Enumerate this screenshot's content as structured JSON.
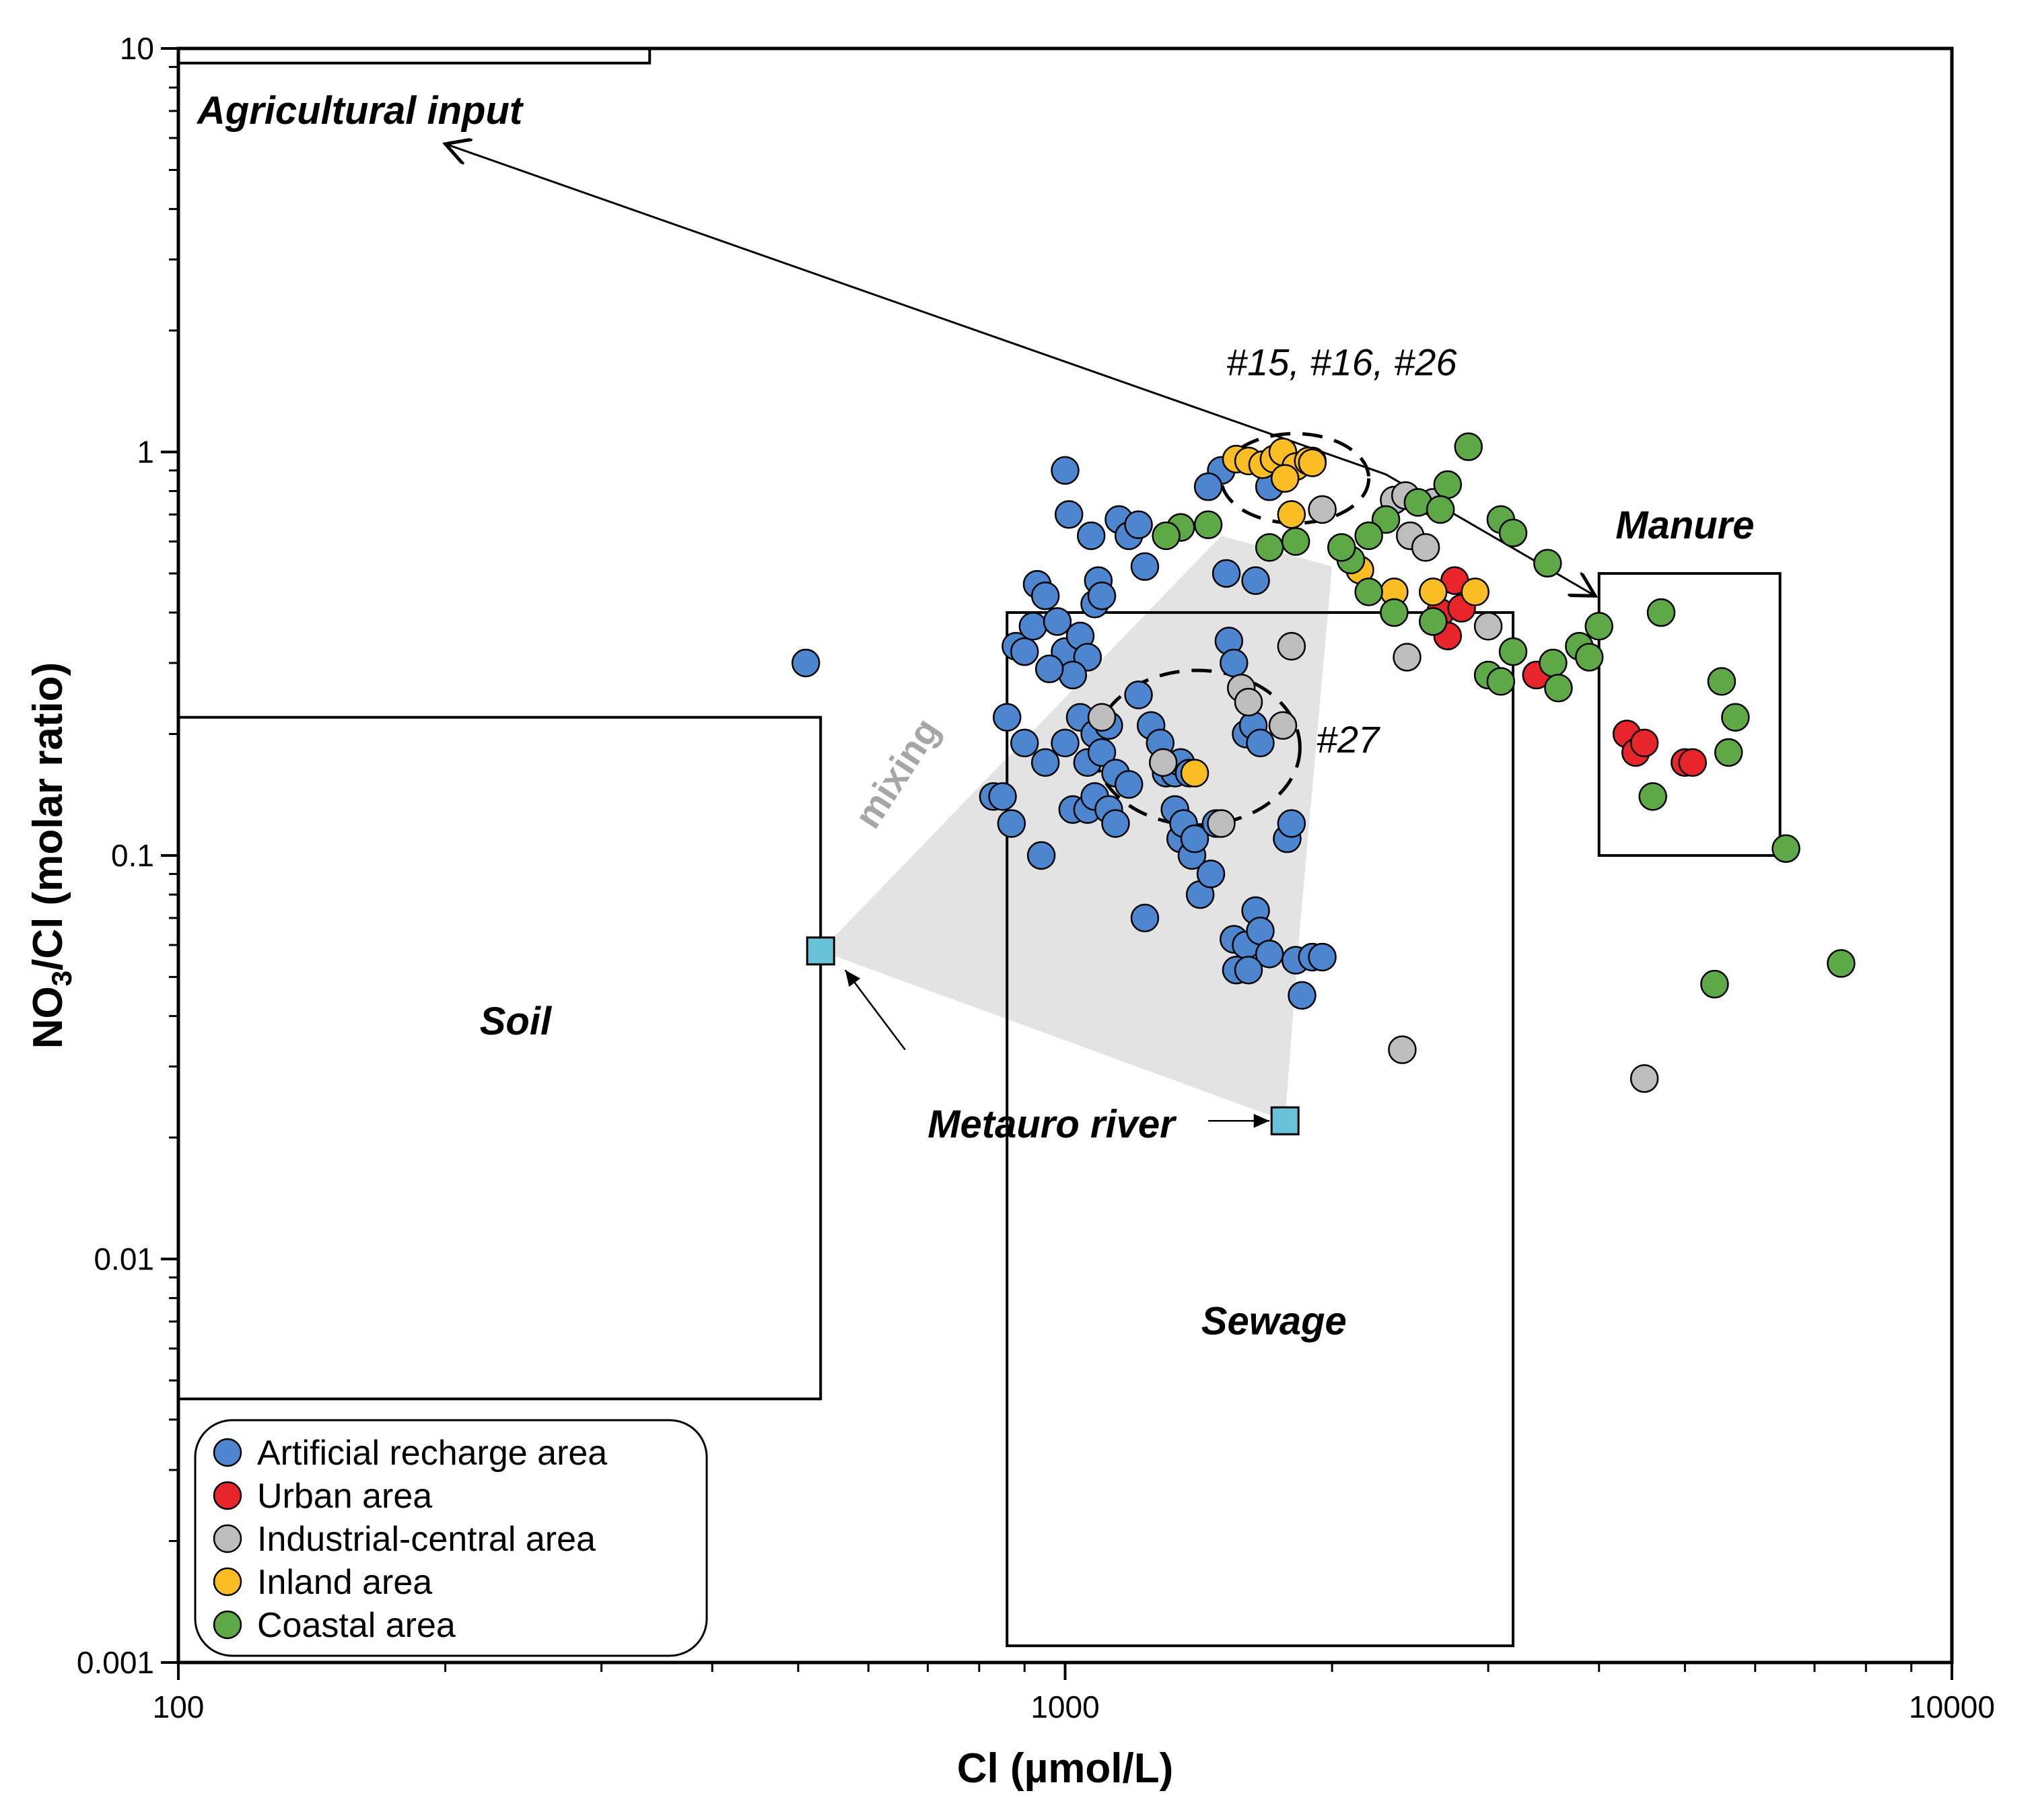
{
  "chart_data": {
    "type": "scatter",
    "xlabel": "Cl (µmol/L)",
    "ylabel_main": "NO",
    "ylabel_sub": "3",
    "ylabel_rest": "/Cl (molar ratio)",
    "xscale": "log",
    "yscale": "log",
    "xlim": [
      100,
      10000
    ],
    "ylim": [
      0.001,
      10
    ],
    "x_ticks": [
      {
        "value": 100,
        "label": "100"
      },
      {
        "value": 1000,
        "label": "1000"
      },
      {
        "value": 10000,
        "label": "10000"
      }
    ],
    "y_ticks": [
      {
        "value": 0.001,
        "label": "0.001"
      },
      {
        "value": 0.01,
        "label": "0.01"
      },
      {
        "value": 0.1,
        "label": "0.1"
      },
      {
        "value": 1,
        "label": "1"
      },
      {
        "value": 10,
        "label": "10"
      }
    ],
    "grid": false,
    "legend_position": "bottom-left",
    "series": [
      {
        "name": "Artificial recharge area",
        "color": "#4d86cf",
        "points": [
          [
            510,
            0.3
          ],
          [
            1000,
            0.9
          ],
          [
            1500,
            0.9
          ],
          [
            1450,
            0.82
          ],
          [
            1010,
            0.7
          ],
          [
            1070,
            0.62
          ],
          [
            1150,
            0.68
          ],
          [
            1180,
            0.62
          ],
          [
            1210,
            0.66
          ],
          [
            1230,
            0.52
          ],
          [
            1520,
            0.5
          ],
          [
            1640,
            0.48
          ],
          [
            1700,
            0.82
          ],
          [
            930,
            0.47
          ],
          [
            950,
            0.44
          ],
          [
            880,
            0.33
          ],
          [
            900,
            0.32
          ],
          [
            920,
            0.37
          ],
          [
            980,
            0.38
          ],
          [
            1000,
            0.32
          ],
          [
            1040,
            0.35
          ],
          [
            1060,
            0.31
          ],
          [
            1080,
            0.42
          ],
          [
            1090,
            0.48
          ],
          [
            1100,
            0.44
          ],
          [
            1020,
            0.28
          ],
          [
            960,
            0.29
          ],
          [
            860,
            0.22
          ],
          [
            900,
            0.19
          ],
          [
            950,
            0.17
          ],
          [
            1000,
            0.19
          ],
          [
            1040,
            0.22
          ],
          [
            1080,
            0.2
          ],
          [
            1120,
            0.21
          ],
          [
            1060,
            0.17
          ],
          [
            1100,
            0.18
          ],
          [
            1140,
            0.16
          ],
          [
            1180,
            0.15
          ],
          [
            830,
            0.14
          ],
          [
            850,
            0.14
          ],
          [
            870,
            0.12
          ],
          [
            940,
            0.1
          ],
          [
            1020,
            0.13
          ],
          [
            1060,
            0.13
          ],
          [
            1080,
            0.14
          ],
          [
            1120,
            0.13
          ],
          [
            1140,
            0.12
          ],
          [
            1210,
            0.25
          ],
          [
            1250,
            0.21
          ],
          [
            1280,
            0.19
          ],
          [
            1300,
            0.16
          ],
          [
            1330,
            0.16
          ],
          [
            1350,
            0.17
          ],
          [
            1380,
            0.16
          ],
          [
            1230,
            0.07
          ],
          [
            1330,
            0.13
          ],
          [
            1350,
            0.11
          ],
          [
            1360,
            0.12
          ],
          [
            1390,
            0.1
          ],
          [
            1400,
            0.11
          ],
          [
            1420,
            0.08
          ],
          [
            1460,
            0.09
          ],
          [
            1480,
            0.12
          ],
          [
            1530,
            0.34
          ],
          [
            1550,
            0.3
          ],
          [
            1600,
            0.2
          ],
          [
            1630,
            0.21
          ],
          [
            1660,
            0.19
          ],
          [
            1550,
            0.062
          ],
          [
            1600,
            0.06
          ],
          [
            1640,
            0.073
          ],
          [
            1660,
            0.065
          ],
          [
            1700,
            0.057
          ],
          [
            1780,
            0.11
          ],
          [
            1800,
            0.12
          ],
          [
            1820,
            0.055
          ],
          [
            1850,
            0.045
          ],
          [
            1900,
            0.056
          ],
          [
            1950,
            0.056
          ],
          [
            1560,
            0.052
          ],
          [
            1610,
            0.052
          ]
        ]
      },
      {
        "name": "Urban area",
        "color": "#e8252a",
        "points": [
          [
            2650,
            0.4
          ],
          [
            2750,
            0.48
          ],
          [
            2800,
            0.41
          ],
          [
            2700,
            0.35
          ],
          [
            3400,
            0.28
          ],
          [
            4300,
            0.2
          ],
          [
            4400,
            0.18
          ],
          [
            4500,
            0.19
          ],
          [
            5000,
            0.17
          ],
          [
            5100,
            0.17
          ]
        ]
      },
      {
        "name": "Industrial-central area",
        "color": "#bdbdbd",
        "points": [
          [
            1900,
            0.95
          ],
          [
            1950,
            0.72
          ],
          [
            2350,
            0.76
          ],
          [
            2420,
            0.78
          ],
          [
            2600,
            0.75
          ],
          [
            2450,
            0.62
          ],
          [
            2550,
            0.58
          ],
          [
            2430,
            0.31
          ],
          [
            3000,
            0.37
          ],
          [
            1800,
            0.33
          ],
          [
            1580,
            0.26
          ],
          [
            1610,
            0.24
          ],
          [
            1760,
            0.21
          ],
          [
            1100,
            0.22
          ],
          [
            1290,
            0.17
          ],
          [
            1500,
            0.12
          ],
          [
            2400,
            0.033
          ],
          [
            4500,
            0.028
          ]
        ]
      },
      {
        "name": "Inland area",
        "color": "#fbbd24",
        "points": [
          [
            1560,
            0.96
          ],
          [
            1610,
            0.95
          ],
          [
            1670,
            0.93
          ],
          [
            1720,
            0.96
          ],
          [
            1760,
            1.0
          ],
          [
            1820,
            0.92
          ],
          [
            1880,
            0.95
          ],
          [
            1900,
            0.94
          ],
          [
            1770,
            0.86
          ],
          [
            1800,
            0.7
          ],
          [
            2150,
            0.51
          ],
          [
            2350,
            0.45
          ],
          [
            2600,
            0.45
          ],
          [
            2900,
            0.45
          ],
          [
            1400,
            0.16
          ]
        ]
      },
      {
        "name": "Coastal area",
        "color": "#5fa847",
        "points": [
          [
            2850,
            1.03
          ],
          [
            2700,
            0.83
          ],
          [
            2500,
            0.75
          ],
          [
            2650,
            0.72
          ],
          [
            2300,
            0.68
          ],
          [
            2200,
            0.62
          ],
          [
            2100,
            0.54
          ],
          [
            2050,
            0.58
          ],
          [
            1820,
            0.6
          ],
          [
            1700,
            0.58
          ],
          [
            1450,
            0.66
          ],
          [
            1350,
            0.65
          ],
          [
            1300,
            0.62
          ],
          [
            2200,
            0.45
          ],
          [
            2350,
            0.4
          ],
          [
            2600,
            0.38
          ],
          [
            3100,
            0.68
          ],
          [
            3200,
            0.63
          ],
          [
            3500,
            0.53
          ],
          [
            3200,
            0.32
          ],
          [
            3000,
            0.28
          ],
          [
            3100,
            0.27
          ],
          [
            3550,
            0.3
          ],
          [
            3600,
            0.26
          ],
          [
            3800,
            0.33
          ],
          [
            3900,
            0.31
          ],
          [
            4000,
            0.37
          ],
          [
            4700,
            0.4
          ],
          [
            5500,
            0.27
          ],
          [
            5700,
            0.22
          ],
          [
            5600,
            0.18
          ],
          [
            4600,
            0.14
          ],
          [
            6500,
            0.104
          ],
          [
            5400,
            0.048
          ],
          [
            7500,
            0.054
          ]
        ]
      }
    ],
    "metauro_river": {
      "label": "Metauro river",
      "color": "#69c3d8",
      "points": [
        [
          530,
          0.058
        ],
        [
          1770,
          0.022
        ]
      ]
    },
    "regions": [
      {
        "label": "Soil",
        "x": [
          100,
          530
        ],
        "y": [
          0.0045,
          0.22
        ]
      },
      {
        "label": "Sewage",
        "x": [
          860,
          3200
        ],
        "y": [
          0.0011,
          0.4
        ]
      },
      {
        "label": "Manure",
        "x": [
          4000,
          6400
        ],
        "y": [
          0.1,
          0.5
        ]
      },
      {
        "label": "Agricultural input",
        "x": [
          100,
          340
        ],
        "y": [
          9.2,
          10
        ]
      }
    ],
    "mixing_label": "mixing",
    "annotations": [
      {
        "text": "#15, #16, #26"
      },
      {
        "text": "#27"
      }
    ]
  }
}
